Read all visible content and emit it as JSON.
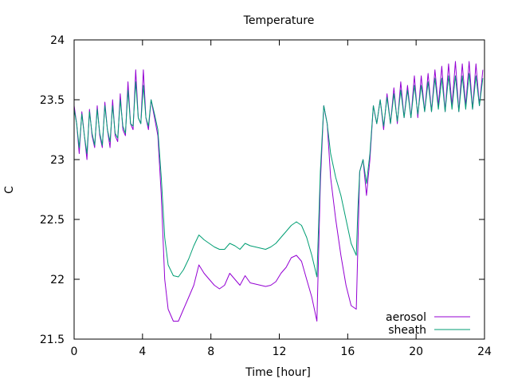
{
  "chart_data": {
    "type": "line",
    "title": "Temperature",
    "xlabel": "Time [hour]",
    "ylabel": "C",
    "xlim": [
      0,
      24
    ],
    "ylim": [
      21.5,
      24
    ],
    "xticks": [
      0,
      4,
      8,
      12,
      16,
      20,
      24
    ],
    "yticks": [
      21.5,
      22,
      22.5,
      23,
      23.5,
      24
    ],
    "ytick_labels": [
      "21.5",
      "22",
      "22.5",
      "23",
      "23.5",
      "24"
    ],
    "xtick_labels": [
      "0",
      "4",
      "8",
      "12",
      "16",
      "20",
      "24"
    ],
    "legend_position": "bottom-right",
    "series": [
      {
        "name": "aerosol",
        "color": "#9400d3",
        "x": [
          0,
          0.15,
          0.3,
          0.45,
          0.6,
          0.75,
          0.9,
          1.05,
          1.2,
          1.35,
          1.5,
          1.65,
          1.8,
          1.95,
          2.1,
          2.25,
          2.4,
          2.55,
          2.7,
          2.85,
          3.0,
          3.15,
          3.3,
          3.45,
          3.6,
          3.75,
          3.9,
          4.05,
          4.2,
          4.35,
          4.5,
          4.7,
          4.9,
          5.1,
          5.3,
          5.5,
          5.8,
          6.1,
          6.4,
          6.7,
          7.0,
          7.3,
          7.6,
          7.9,
          8.2,
          8.5,
          8.8,
          9.1,
          9.4,
          9.7,
          10.0,
          10.3,
          10.6,
          10.9,
          11.2,
          11.5,
          11.8,
          12.1,
          12.4,
          12.7,
          13.0,
          13.3,
          13.6,
          13.9,
          14.2,
          14.4,
          14.6,
          14.8,
          15.0,
          15.3,
          15.6,
          15.9,
          16.2,
          16.5,
          16.6,
          16.7,
          16.9,
          17.1,
          17.3,
          17.5,
          17.7,
          17.9,
          18.1,
          18.3,
          18.5,
          18.7,
          18.9,
          19.1,
          19.3,
          19.5,
          19.7,
          19.9,
          20.1,
          20.3,
          20.5,
          20.7,
          20.9,
          21.1,
          21.3,
          21.5,
          21.7,
          21.9,
          22.1,
          22.3,
          22.5,
          22.7,
          22.9,
          23.1,
          23.3,
          23.5,
          23.7,
          23.9
        ],
        "values": [
          23.45,
          23.3,
          23.05,
          23.4,
          23.2,
          23.0,
          23.42,
          23.2,
          23.1,
          23.45,
          23.2,
          23.1,
          23.48,
          23.25,
          23.1,
          23.5,
          23.2,
          23.15,
          23.55,
          23.25,
          23.2,
          23.65,
          23.3,
          23.25,
          23.75,
          23.35,
          23.3,
          23.75,
          23.35,
          23.25,
          23.5,
          23.35,
          23.2,
          22.7,
          22.0,
          21.75,
          21.65,
          21.65,
          21.75,
          21.85,
          21.95,
          22.12,
          22.05,
          22.0,
          21.95,
          21.92,
          21.95,
          22.05,
          22.0,
          21.95,
          22.03,
          21.97,
          21.96,
          21.95,
          21.94,
          21.95,
          21.98,
          22.05,
          22.1,
          22.18,
          22.2,
          22.15,
          22.0,
          21.85,
          21.65,
          22.8,
          23.45,
          23.3,
          22.85,
          22.5,
          22.2,
          21.95,
          21.78,
          21.75,
          22.3,
          22.9,
          23.0,
          22.7,
          23.0,
          23.45,
          23.3,
          23.5,
          23.25,
          23.55,
          23.3,
          23.6,
          23.3,
          23.65,
          23.35,
          23.62,
          23.35,
          23.7,
          23.35,
          23.7,
          23.4,
          23.72,
          23.4,
          23.75,
          23.45,
          23.78,
          23.4,
          23.8,
          23.45,
          23.82,
          23.4,
          23.8,
          23.45,
          23.82,
          23.42,
          23.8,
          23.45,
          23.75
        ]
      },
      {
        "name": "sheath",
        "color": "#009e73",
        "x": [
          0,
          0.15,
          0.3,
          0.45,
          0.6,
          0.75,
          0.9,
          1.05,
          1.2,
          1.35,
          1.5,
          1.65,
          1.8,
          1.95,
          2.1,
          2.25,
          2.4,
          2.55,
          2.7,
          2.85,
          3.0,
          3.15,
          3.3,
          3.45,
          3.6,
          3.75,
          3.9,
          4.05,
          4.2,
          4.35,
          4.5,
          4.7,
          4.9,
          5.1,
          5.3,
          5.5,
          5.8,
          6.1,
          6.4,
          6.7,
          7.0,
          7.3,
          7.6,
          7.9,
          8.2,
          8.5,
          8.8,
          9.1,
          9.4,
          9.7,
          10.0,
          10.3,
          10.6,
          10.9,
          11.2,
          11.5,
          11.8,
          12.1,
          12.4,
          12.7,
          13.0,
          13.3,
          13.6,
          13.9,
          14.2,
          14.4,
          14.6,
          14.8,
          15.0,
          15.3,
          15.6,
          15.9,
          16.2,
          16.5,
          16.6,
          16.7,
          16.9,
          17.1,
          17.3,
          17.5,
          17.7,
          17.9,
          18.1,
          18.3,
          18.5,
          18.7,
          18.9,
          19.1,
          19.3,
          19.5,
          19.7,
          19.9,
          20.1,
          20.3,
          20.5,
          20.7,
          20.9,
          21.1,
          21.3,
          21.5,
          21.7,
          21.9,
          22.1,
          22.3,
          22.5,
          22.7,
          22.9,
          23.1,
          23.3,
          23.5,
          23.7,
          23.9
        ],
        "values": [
          23.42,
          23.3,
          23.1,
          23.38,
          23.2,
          23.05,
          23.4,
          23.22,
          23.12,
          23.42,
          23.22,
          23.12,
          23.45,
          23.25,
          23.15,
          23.45,
          23.22,
          23.18,
          23.5,
          23.28,
          23.22,
          23.58,
          23.3,
          23.28,
          23.65,
          23.35,
          23.3,
          23.62,
          23.35,
          23.28,
          23.5,
          23.38,
          23.25,
          22.85,
          22.35,
          22.12,
          22.03,
          22.02,
          22.08,
          22.17,
          22.28,
          22.37,
          22.33,
          22.3,
          22.27,
          22.25,
          22.25,
          22.3,
          22.28,
          22.25,
          22.3,
          22.28,
          22.27,
          22.26,
          22.25,
          22.27,
          22.3,
          22.35,
          22.4,
          22.45,
          22.48,
          22.45,
          22.35,
          22.2,
          22.02,
          22.9,
          23.45,
          23.3,
          23.05,
          22.85,
          22.7,
          22.5,
          22.3,
          22.2,
          22.6,
          22.9,
          23.0,
          22.8,
          23.05,
          23.45,
          23.3,
          23.5,
          23.28,
          23.52,
          23.3,
          23.55,
          23.32,
          23.58,
          23.35,
          23.58,
          23.35,
          23.62,
          23.38,
          23.62,
          23.4,
          23.65,
          23.4,
          23.68,
          23.42,
          23.68,
          23.4,
          23.7,
          23.42,
          23.7,
          23.4,
          23.7,
          23.42,
          23.72,
          23.42,
          23.7,
          23.45,
          23.68
        ]
      }
    ]
  }
}
